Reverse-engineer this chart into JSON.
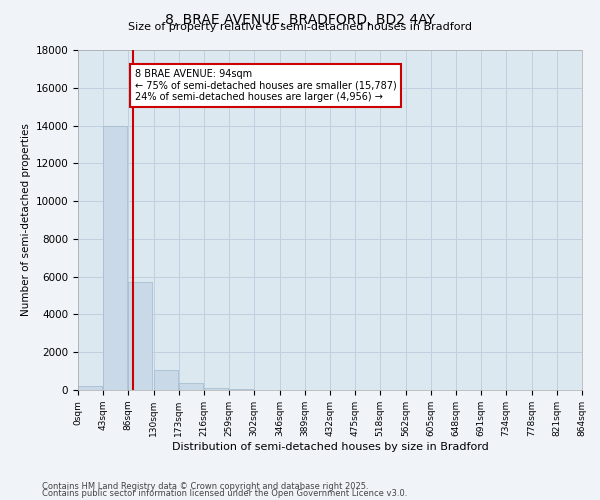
{
  "title": "8, BRAE AVENUE, BRADFORD, BD2 4AY",
  "subtitle": "Size of property relative to semi-detached houses in Bradford",
  "xlabel": "Distribution of semi-detached houses by size in Bradford",
  "ylabel": "Number of semi-detached properties",
  "bar_color": "#c9d9e8",
  "bar_edge_color": "#a0b8cc",
  "grid_color": "#c0d0e0",
  "background_color": "#dce8f0",
  "fig_background_color": "#f0f4f8",
  "vline_color": "#cc0000",
  "vline_x": 94,
  "annotation_text": "8 BRAE AVENUE: 94sqm\n← 75% of semi-detached houses are smaller (15,787)\n24% of semi-detached houses are larger (4,956) →",
  "bin_edges": [
    0,
    43,
    86,
    130,
    173,
    216,
    259,
    302,
    346,
    389,
    432,
    475,
    518,
    562,
    605,
    648,
    691,
    734,
    778,
    821,
    864
  ],
  "bin_labels": [
    "0sqm",
    "43sqm",
    "86sqm",
    "130sqm",
    "173sqm",
    "216sqm",
    "259sqm",
    "302sqm",
    "346sqm",
    "389sqm",
    "432sqm",
    "475sqm",
    "518sqm",
    "562sqm",
    "605sqm",
    "648sqm",
    "691sqm",
    "734sqm",
    "778sqm",
    "821sqm",
    "864sqm"
  ],
  "bar_heights": [
    200,
    14000,
    5700,
    1050,
    380,
    95,
    40,
    8,
    3,
    1,
    0,
    0,
    0,
    0,
    0,
    0,
    0,
    0,
    0,
    0
  ],
  "ylim": [
    0,
    18000
  ],
  "yticks": [
    0,
    2000,
    4000,
    6000,
    8000,
    10000,
    12000,
    14000,
    16000,
    18000
  ],
  "footnote1": "Contains HM Land Registry data © Crown copyright and database right 2025.",
  "footnote2": "Contains public sector information licensed under the Open Government Licence v3.0."
}
